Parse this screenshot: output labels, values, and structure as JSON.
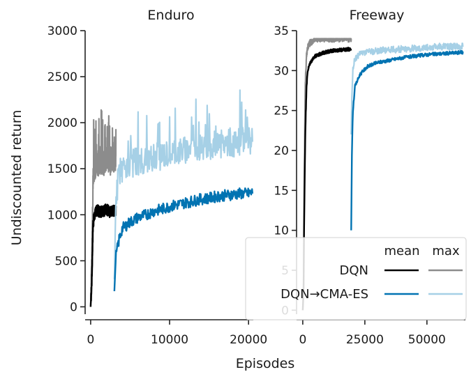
{
  "figure": {
    "ylabel": "Undiscounted return",
    "xlabel": "Episodes"
  },
  "chart_data": [
    {
      "type": "line",
      "title": "Enduro",
      "xlabel": "Episodes",
      "ylabel": "Undiscounted return",
      "xlim": [
        -700,
        20600
      ],
      "ylim": [
        -80,
        3000
      ],
      "xticks": [
        "0",
        "10000",
        "20000"
      ],
      "yticks": [
        "0",
        "500",
        "1000",
        "1500",
        "2000",
        "2500",
        "3000"
      ],
      "series": [
        {
          "name": "DQN mean",
          "color": "#000000",
          "x": [
            0,
            150,
            300,
            500,
            800,
            1200,
            1600,
            2000,
            2400,
            2800,
            3200
          ],
          "y": [
            0,
            300,
            900,
            1000,
            1050,
            1030,
            1040,
            1060,
            1030,
            1050,
            1040
          ]
        },
        {
          "name": "DQN max",
          "color": "#8c8c8c",
          "x": [
            0,
            150,
            300,
            500,
            800,
            1200,
            1600,
            2000,
            2400,
            2800,
            3200
          ],
          "y": [
            0,
            500,
            1350,
            1500,
            1550,
            1600,
            1560,
            1620,
            1580,
            1600,
            1580
          ]
        },
        {
          "name": "DQN→CMA-ES mean",
          "color": "#0173b2",
          "x": [
            3000,
            3200,
            3600,
            4000,
            5000,
            6000,
            7000,
            8000,
            9000,
            10000,
            11000,
            12000,
            13000,
            14000,
            15000,
            16000,
            17000,
            18000,
            19000,
            20000,
            20500
          ],
          "y": [
            170,
            550,
            730,
            850,
            920,
            970,
            1000,
            1040,
            1060,
            1090,
            1110,
            1130,
            1150,
            1170,
            1180,
            1200,
            1210,
            1220,
            1230,
            1230,
            1240
          ]
        },
        {
          "name": "DQN→CMA-ES max",
          "color": "#a6d0e6",
          "x": [
            3000,
            3200,
            3600,
            4000,
            5000,
            6000,
            7000,
            8000,
            9000,
            10000,
            11000,
            12000,
            13000,
            14000,
            15000,
            16000,
            17000,
            18000,
            19000,
            20000,
            20500
          ],
          "y": [
            300,
            1200,
            1450,
            1500,
            1550,
            1580,
            1600,
            1620,
            1640,
            1660,
            1680,
            1700,
            1720,
            1740,
            1750,
            1760,
            1770,
            1780,
            1790,
            1790,
            1800
          ]
        }
      ]
    },
    {
      "type": "line",
      "title": "Freeway",
      "xlabel": "Episodes",
      "ylabel": "",
      "xlim": [
        -2500,
        65500
      ],
      "ylim": [
        -0.5,
        35
      ],
      "xticks": [
        "0",
        "25000",
        "50000"
      ],
      "yticks": [
        "0",
        "5",
        "10",
        "15",
        "20",
        "25",
        "30",
        "35"
      ],
      "series": [
        {
          "name": "DQN mean",
          "color": "#000000",
          "x": [
            0,
            300,
            600,
            1000,
            1500,
            2000,
            3000,
            5000,
            8000,
            12000,
            16000,
            19500
          ],
          "y": [
            0,
            2,
            12,
            22,
            28,
            30,
            31,
            31.8,
            32.2,
            32.5,
            32.6,
            32.7
          ]
        },
        {
          "name": "DQN max",
          "color": "#8c8c8c",
          "x": [
            0,
            300,
            600,
            1000,
            1500,
            2000,
            3000,
            5000,
            8000,
            12000,
            16000,
            19500
          ],
          "y": [
            0,
            3,
            16,
            28,
            32,
            33,
            33.5,
            34,
            34,
            34,
            34,
            34
          ]
        },
        {
          "name": "DQN→CMA-ES mean",
          "color": "#0173b2",
          "x": [
            19500,
            19800,
            20200,
            21000,
            23000,
            26000,
            30000,
            35000,
            40000,
            45000,
            50000,
            55000,
            60000,
            64500
          ],
          "y": [
            10,
            20,
            25,
            28,
            29.5,
            30.5,
            31,
            31.3,
            31.6,
            31.8,
            32,
            32.1,
            32.2,
            32.3
          ]
        },
        {
          "name": "DQN→CMA-ES max",
          "color": "#a6d0e6",
          "x": [
            19500,
            19800,
            20200,
            21000,
            23000,
            26000,
            30000,
            35000,
            40000,
            45000,
            50000,
            55000,
            60000,
            64500
          ],
          "y": [
            22,
            27,
            30,
            31.5,
            32,
            32.3,
            32.5,
            32.6,
            32.7,
            32.8,
            32.9,
            33,
            33,
            33
          ]
        }
      ]
    }
  ],
  "legend": {
    "col_headers": [
      "mean",
      "max"
    ],
    "rows": [
      {
        "label": "DQN",
        "mean_color": "#000000",
        "max_color": "#8c8c8c"
      },
      {
        "label": "DQN→CMA-ES",
        "mean_color": "#0173b2",
        "max_color": "#a6d0e6"
      }
    ],
    "placement": "lower-right"
  }
}
